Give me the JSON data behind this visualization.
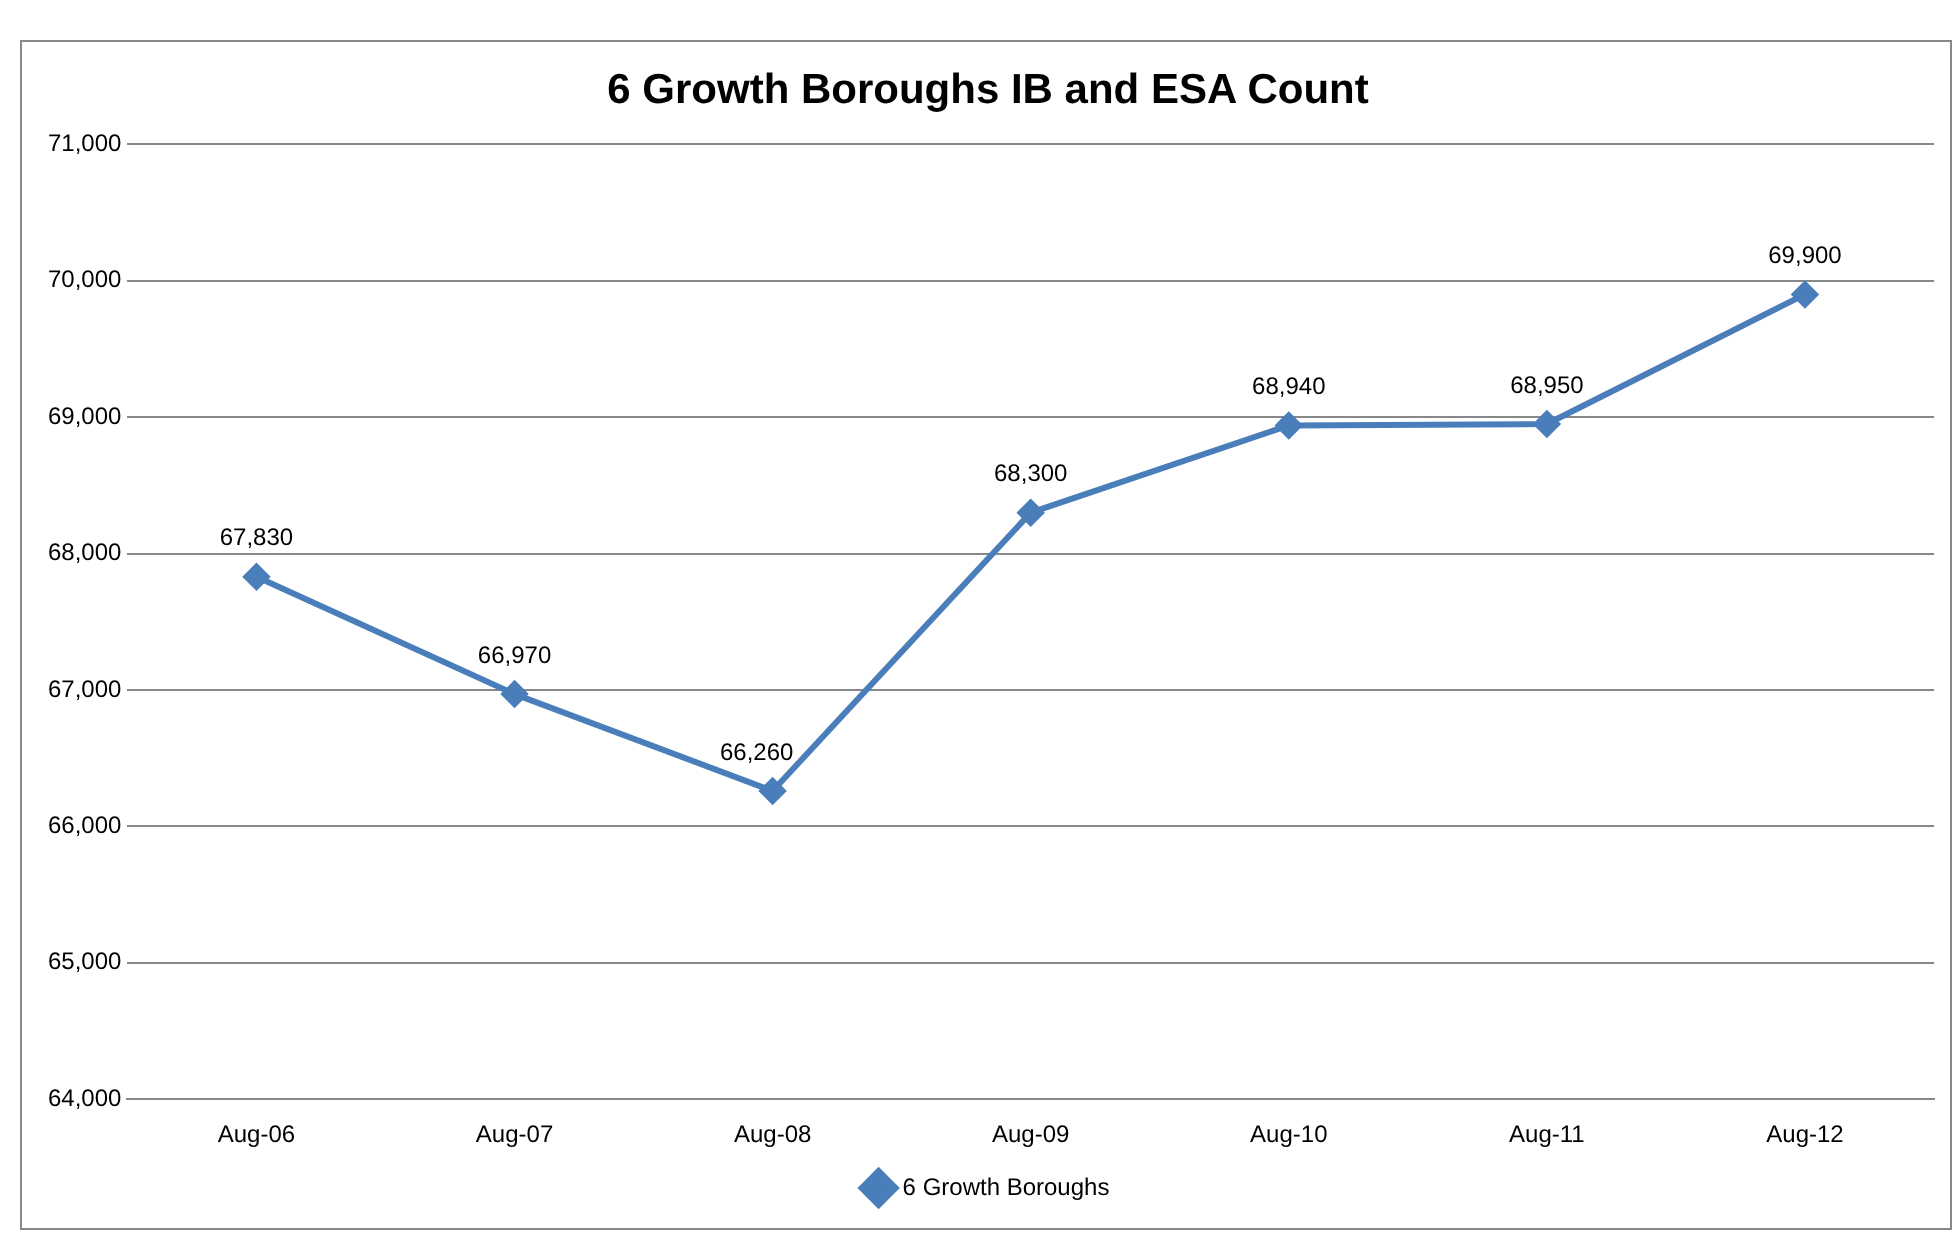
{
  "chart_data": {
    "type": "line",
    "title": "6 Growth Boroughs IB and ESA Count",
    "categories": [
      "Aug-06",
      "Aug-07",
      "Aug-08",
      "Aug-09",
      "Aug-10",
      "Aug-11",
      "Aug-12"
    ],
    "series": [
      {
        "name": "6 Growth Boroughs",
        "color": "#4a7ebb",
        "values": [
          67830,
          66970,
          66260,
          68300,
          68940,
          68950,
          69900
        ],
        "value_labels": [
          "67,830",
          "66,970",
          "66,260",
          "68,300",
          "68,940",
          "68,950",
          "69,900"
        ]
      }
    ],
    "ylim": [
      64000,
      71000
    ],
    "yticks": [
      {
        "value": 64000,
        "label": "64,000"
      },
      {
        "value": 65000,
        "label": "65,000"
      },
      {
        "value": 66000,
        "label": "66,000"
      },
      {
        "value": 67000,
        "label": "67,000"
      },
      {
        "value": 68000,
        "label": "68,000"
      },
      {
        "value": 69000,
        "label": "69,000"
      },
      {
        "value": 70000,
        "label": "70,000"
      },
      {
        "value": 71000,
        "label": "71,000"
      }
    ],
    "grid": "y",
    "legend": "bottom",
    "marker": "diamond",
    "line_style": "solid"
  }
}
